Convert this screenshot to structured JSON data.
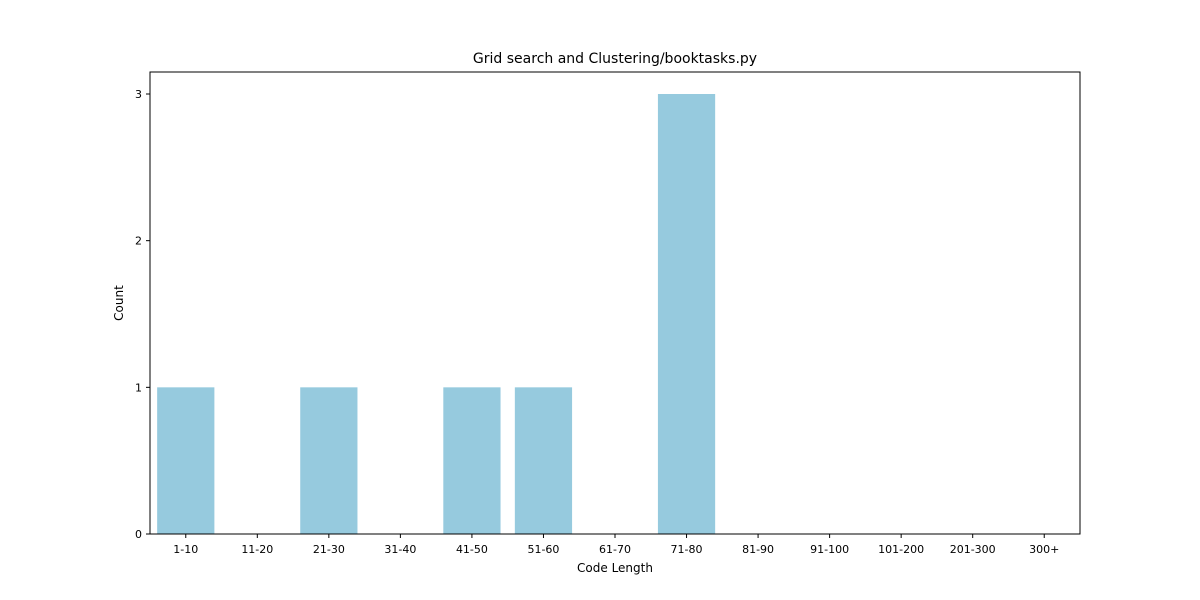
{
  "chart_data": {
    "type": "bar",
    "title": "Grid search and Clustering/booktasks.py",
    "xlabel": "Code Length",
    "ylabel": "Count",
    "categories": [
      "1-10",
      "11-20",
      "21-30",
      "31-40",
      "41-50",
      "51-60",
      "61-70",
      "71-80",
      "81-90",
      "91-100",
      "101-200",
      "201-300",
      "300+"
    ],
    "values": [
      1,
      0,
      1,
      0,
      1,
      1,
      0,
      3,
      0,
      0,
      0,
      0,
      0
    ],
    "yticks": [
      0,
      1,
      2,
      3
    ],
    "ylim": [
      0,
      3.15
    ],
    "grid": false,
    "bar_color": "#96cade"
  }
}
